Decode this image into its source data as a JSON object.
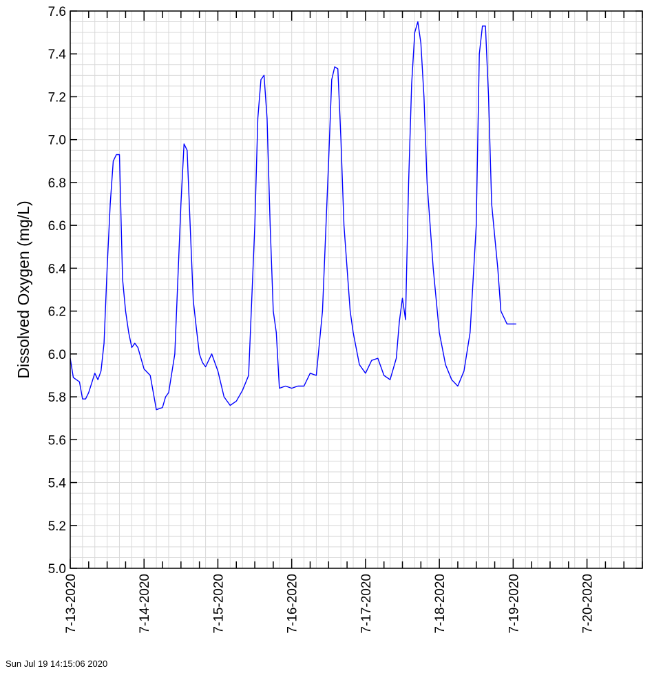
{
  "chart_data": {
    "type": "line",
    "title": "",
    "xlabel": "",
    "ylabel": "Dissolved Oxygen (mg/L)",
    "x_tick_labels": [
      "7-13-2020",
      "7-14-2020",
      "7-15-2020",
      "7-16-2020",
      "7-17-2020",
      "7-18-2020",
      "7-19-2020",
      "7-20-2020"
    ],
    "y_tick_labels": [
      "5.0",
      "5.2",
      "5.4",
      "5.6",
      "5.8",
      "6.0",
      "6.2",
      "6.4",
      "6.6",
      "6.8",
      "7.0",
      "7.2",
      "7.4",
      "7.6"
    ],
    "xlim": [
      "2020-07-13 00:00",
      "2020-07-20 18:00"
    ],
    "ylim": [
      5.0,
      7.6
    ],
    "grid": true,
    "legend": "none",
    "line_color": "#0000ff",
    "series": [
      {
        "x": [
          "2020-07-13 00:00",
          "2020-07-13 01:00",
          "2020-07-13 02:00",
          "2020-07-13 03:00",
          "2020-07-13 04:00",
          "2020-07-13 05:00",
          "2020-07-13 06:00",
          "2020-07-13 08:00",
          "2020-07-13 09:00",
          "2020-07-13 10:00",
          "2020-07-13 11:00",
          "2020-07-13 12:00",
          "2020-07-13 13:00",
          "2020-07-13 14:00",
          "2020-07-13 15:00",
          "2020-07-13 16:00",
          "2020-07-13 17:00",
          "2020-07-13 18:00",
          "2020-07-13 19:00",
          "2020-07-13 20:00",
          "2020-07-13 21:00",
          "2020-07-13 22:00",
          "2020-07-14 00:00",
          "2020-07-14 02:00",
          "2020-07-14 04:00",
          "2020-07-14 06:00",
          "2020-07-14 07:00",
          "2020-07-14 08:00",
          "2020-07-14 10:00",
          "2020-07-14 12:00",
          "2020-07-14 13:00",
          "2020-07-14 14:00",
          "2020-07-14 15:00",
          "2020-07-14 16:00",
          "2020-07-14 17:00",
          "2020-07-14 18:00",
          "2020-07-14 19:00",
          "2020-07-14 20:00",
          "2020-07-14 22:00",
          "2020-07-15 00:00",
          "2020-07-15 02:00",
          "2020-07-15 04:00",
          "2020-07-15 06:00",
          "2020-07-15 08:00",
          "2020-07-15 10:00",
          "2020-07-15 12:00",
          "2020-07-15 13:00",
          "2020-07-15 14:00",
          "2020-07-15 15:00",
          "2020-07-15 16:00",
          "2020-07-15 17:00",
          "2020-07-15 18:00",
          "2020-07-15 19:00",
          "2020-07-15 20:00",
          "2020-07-15 22:00",
          "2020-07-16 00:00",
          "2020-07-16 02:00",
          "2020-07-16 04:00",
          "2020-07-16 06:00",
          "2020-07-16 08:00",
          "2020-07-16 10:00",
          "2020-07-16 12:00",
          "2020-07-16 13:00",
          "2020-07-16 14:00",
          "2020-07-16 15:00",
          "2020-07-16 16:00",
          "2020-07-16 17:00",
          "2020-07-16 18:00",
          "2020-07-16 19:00",
          "2020-07-16 20:00",
          "2020-07-16 22:00",
          "2020-07-17 00:00",
          "2020-07-17 02:00",
          "2020-07-17 04:00",
          "2020-07-17 06:00",
          "2020-07-17 08:00",
          "2020-07-17 10:00",
          "2020-07-17 11:00",
          "2020-07-17 12:00",
          "2020-07-17 13:00",
          "2020-07-17 14:00",
          "2020-07-17 15:00",
          "2020-07-17 16:00",
          "2020-07-17 17:00",
          "2020-07-17 18:00",
          "2020-07-17 19:00",
          "2020-07-17 20:00",
          "2020-07-17 22:00",
          "2020-07-18 00:00",
          "2020-07-18 02:00",
          "2020-07-18 04:00",
          "2020-07-18 06:00",
          "2020-07-18 08:00",
          "2020-07-18 10:00",
          "2020-07-18 12:00",
          "2020-07-18 13:00",
          "2020-07-18 14:00",
          "2020-07-18 15:00",
          "2020-07-18 16:00",
          "2020-07-18 17:00",
          "2020-07-18 18:00",
          "2020-07-18 19:00",
          "2020-07-18 20:00",
          "2020-07-18 22:00",
          "2020-07-19 00:00",
          "2020-07-19 01:00"
        ],
        "y": [
          5.98,
          5.89,
          5.88,
          5.87,
          5.79,
          5.79,
          5.82,
          5.91,
          5.88,
          5.92,
          6.05,
          6.4,
          6.7,
          6.9,
          6.93,
          6.93,
          6.35,
          6.2,
          6.1,
          6.03,
          6.05,
          6.03,
          5.93,
          5.9,
          5.74,
          5.75,
          5.8,
          5.82,
          6.0,
          6.7,
          6.98,
          6.95,
          6.6,
          6.25,
          6.12,
          6.0,
          5.96,
          5.94,
          6.0,
          5.92,
          5.8,
          5.76,
          5.78,
          5.83,
          5.9,
          6.6,
          7.1,
          7.28,
          7.3,
          7.1,
          6.6,
          6.2,
          6.1,
          5.84,
          5.85,
          5.84,
          5.85,
          5.85,
          5.91,
          5.9,
          6.2,
          6.9,
          7.28,
          7.34,
          7.33,
          7.0,
          6.6,
          6.4,
          6.2,
          6.1,
          5.95,
          5.91,
          5.97,
          5.98,
          5.9,
          5.88,
          5.98,
          6.15,
          6.26,
          6.16,
          6.8,
          7.26,
          7.5,
          7.55,
          7.45,
          7.2,
          6.8,
          6.4,
          6.1,
          5.95,
          5.88,
          5.85,
          5.92,
          6.1,
          6.6,
          7.4,
          7.53,
          7.53,
          7.2,
          6.7,
          6.55,
          6.4,
          6.2,
          6.14,
          6.14,
          6.14
        ]
      }
    ]
  },
  "footer": {
    "timestamp": "Sun Jul 19 14:15:06 2020"
  }
}
